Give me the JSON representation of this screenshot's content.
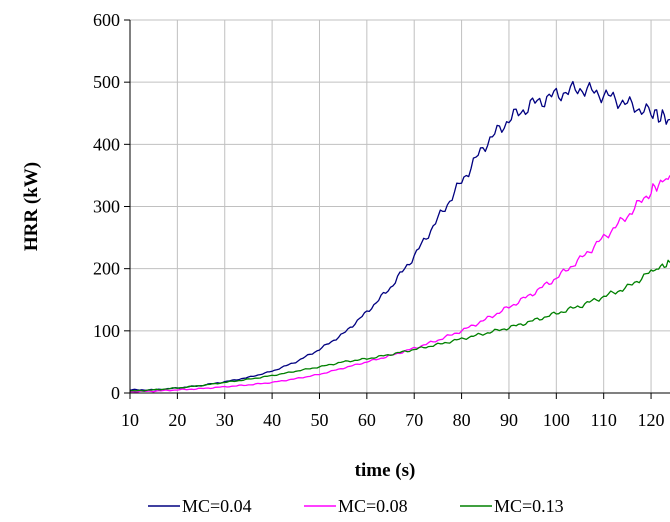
{
  "chart_data": {
    "type": "line",
    "xlabel": "time (s)",
    "ylabel": "HRR (kW)",
    "xlim": [
      10,
      124
    ],
    "ylim": [
      0,
      600
    ],
    "x_ticks": [
      10,
      20,
      30,
      40,
      50,
      60,
      70,
      80,
      90,
      100,
      110,
      120
    ],
    "y_ticks": [
      0,
      100,
      200,
      300,
      400,
      500,
      600
    ],
    "grid": true,
    "legend_position": "bottom",
    "x": [
      10,
      15,
      20,
      25,
      30,
      35,
      40,
      45,
      50,
      55,
      60,
      65,
      70,
      75,
      80,
      85,
      90,
      95,
      100,
      105,
      110,
      115,
      120,
      124
    ],
    "series": [
      {
        "name": "MC=0.04",
        "color": "#000080",
        "values": [
          5,
          5,
          8,
          12,
          18,
          25,
          35,
          50,
          70,
          95,
          130,
          170,
          220,
          280,
          340,
          400,
          440,
          465,
          480,
          490,
          480,
          465,
          450,
          440
        ]
      },
      {
        "name": "MC=0.08",
        "color": "#ff00ff",
        "values": [
          2,
          3,
          5,
          7,
          10,
          13,
          17,
          23,
          30,
          40,
          50,
          60,
          72,
          85,
          100,
          118,
          138,
          160,
          185,
          215,
          250,
          285,
          325,
          350
        ]
      },
      {
        "name": "MC=0.13",
        "color": "#008000",
        "values": [
          3,
          5,
          8,
          12,
          17,
          22,
          28,
          35,
          42,
          50,
          55,
          62,
          70,
          78,
          87,
          96,
          105,
          116,
          128,
          140,
          155,
          170,
          195,
          210
        ]
      }
    ]
  }
}
